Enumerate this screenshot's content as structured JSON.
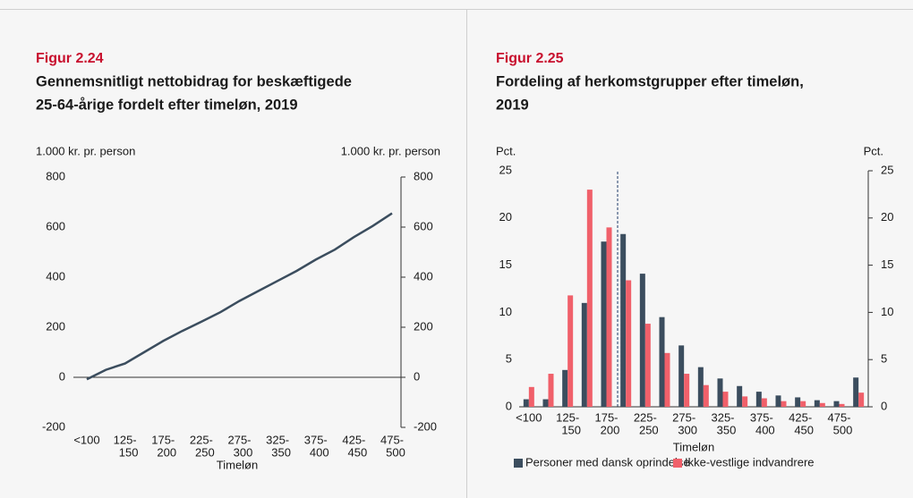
{
  "chart_data": [
    {
      "type": "line",
      "label": "Figur 2.24",
      "title": [
        "Gennemsnitligt nettobidrag for beskæftigede",
        "25-64-årige fordelt efter timeløn, 2019"
      ],
      "ylabel": "1.000 kr. pr. person",
      "y2label": "1.000 kr. pr. person",
      "xlabel": "Timeløn",
      "categories": [
        [
          "<100"
        ],
        null,
        [
          "125-",
          "150"
        ],
        null,
        [
          "175-",
          "200"
        ],
        null,
        [
          "225-",
          "250"
        ],
        null,
        [
          "275-",
          "300"
        ],
        null,
        [
          "325-",
          "350"
        ],
        null,
        [
          "375-",
          "400"
        ],
        null,
        [
          "425-",
          "450"
        ],
        null,
        [
          "475-",
          "500"
        ]
      ],
      "values": [
        -8,
        30,
        55,
        100,
        145,
        185,
        222,
        260,
        305,
        345,
        385,
        425,
        470,
        510,
        560,
        605,
        655
      ],
      "color": "#3b4d5e",
      "ylim": [
        -200,
        800
      ],
      "yticks": [
        -200,
        0,
        200,
        400,
        600,
        800
      ],
      "y2lim": [
        -200,
        800
      ],
      "y2ticks": [
        -200,
        0,
        200,
        400,
        600,
        800
      ]
    },
    {
      "type": "bar",
      "label": "Figur 2.25",
      "title": [
        "Fordeling af herkomstgrupper efter timeløn,",
        "2019"
      ],
      "ylabel": "Pct.",
      "y2label": "Pct.",
      "xlabel": "Timeløn",
      "categories": [
        [
          "<100"
        ],
        null,
        [
          "125-",
          "150"
        ],
        null,
        [
          "175-",
          "200"
        ],
        null,
        [
          "225-",
          "250"
        ],
        null,
        [
          "275-",
          "300"
        ],
        null,
        [
          "325-",
          "350"
        ],
        null,
        [
          "375-",
          "400"
        ],
        null,
        [
          "425-",
          "450"
        ],
        null,
        [
          "475-",
          "500"
        ],
        null
      ],
      "series": [
        {
          "name": "Personer med dansk oprindelse",
          "color": "#3b4d5e",
          "values": [
            0.8,
            0.8,
            3.9,
            11,
            17.5,
            18.3,
            14.1,
            9.5,
            6.5,
            4.2,
            3,
            2.2,
            1.6,
            1.2,
            1,
            0.7,
            0.6,
            3.1
          ]
        },
        {
          "name": "Ikke-vestlige indvandrere",
          "color": "#f0606a",
          "values": [
            2.1,
            3.5,
            11.8,
            23,
            19,
            13.4,
            8.8,
            5.7,
            3.5,
            2.3,
            1.6,
            1.1,
            0.9,
            0.6,
            0.6,
            0.4,
            0.3,
            1.5
          ]
        }
      ],
      "ylim": [
        0,
        25
      ],
      "yticks": [
        0,
        5,
        10,
        15,
        20,
        25
      ],
      "y2lim": [
        0,
        25
      ],
      "y2ticks": [
        0,
        5,
        10,
        15,
        20,
        25
      ]
    }
  ]
}
